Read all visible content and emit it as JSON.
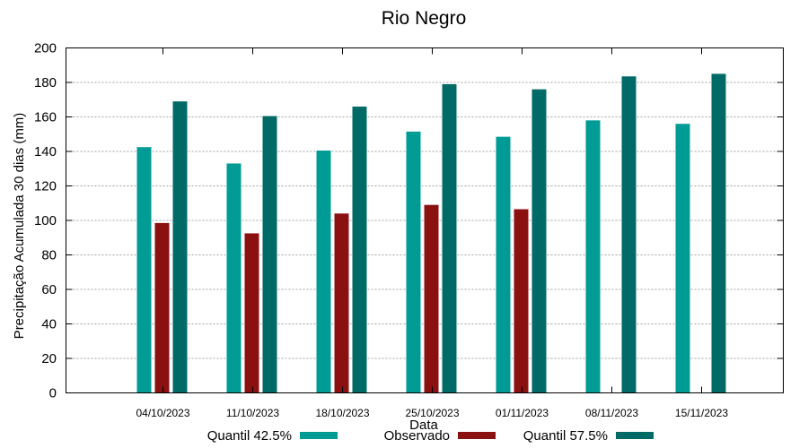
{
  "chart_data": {
    "type": "bar",
    "title": "Rio Negro",
    "xlabel": "Data",
    "ylabel": "Precipitação Acumulada 30 dias (mm)",
    "ylim": [
      0,
      200
    ],
    "yticks": [
      0,
      20,
      40,
      60,
      80,
      100,
      120,
      140,
      160,
      180,
      200
    ],
    "grid": true,
    "legend_position": "bottom",
    "categories": [
      "04/10/2023",
      "11/10/2023",
      "18/10/2023",
      "25/10/2023",
      "01/11/2023",
      "08/11/2023",
      "15/11/2023"
    ],
    "series": [
      {
        "name": "Quantil 42.5%",
        "color": "#009b95",
        "values": [
          142.5,
          133,
          140.5,
          151.5,
          148.5,
          158,
          156
        ]
      },
      {
        "name": "Observado",
        "color": "#8b1010",
        "values": [
          98.5,
          92.5,
          104,
          109,
          106.5,
          null,
          null
        ]
      },
      {
        "name": "Quantil 57.5%",
        "color": "#006a66",
        "values": [
          169,
          160.5,
          166,
          179,
          176,
          183.5,
          185
        ]
      }
    ]
  }
}
